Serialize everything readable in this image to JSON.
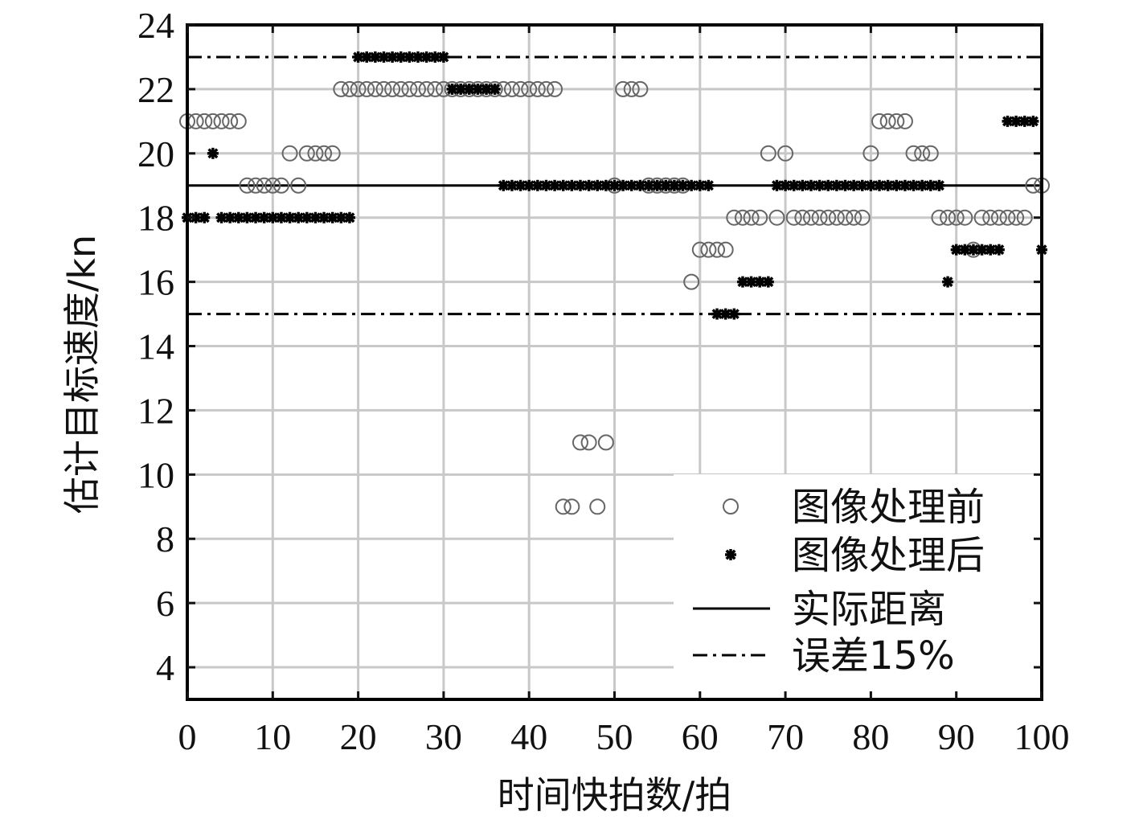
{
  "chart_data": {
    "type": "scatter",
    "title": "",
    "xlabel": "时间快拍数/拍",
    "ylabel": "估计目标速度/kn",
    "xlim": [
      0,
      100
    ],
    "ylim": [
      3,
      24
    ],
    "xticks": [
      "0",
      "10",
      "20",
      "30",
      "40",
      "50",
      "60",
      "70",
      "80",
      "90",
      "100"
    ],
    "yticks": [
      "4",
      "6",
      "8",
      "10",
      "12",
      "14",
      "16",
      "18",
      "20",
      "22",
      "24"
    ],
    "grid": true,
    "legend_position": "bottom-right",
    "series": [
      {
        "name": "图像处理前",
        "marker": "circle",
        "color": "#666666",
        "x": [
          0,
          1,
          2,
          3,
          4,
          5,
          6,
          7,
          8,
          9,
          10,
          11,
          12,
          13,
          14,
          15,
          16,
          17,
          18,
          19,
          20,
          21,
          22,
          23,
          24,
          25,
          26,
          27,
          28,
          29,
          30,
          31,
          32,
          33,
          34,
          35,
          36,
          37,
          38,
          39,
          40,
          41,
          42,
          43,
          44,
          45,
          46,
          47,
          48,
          49,
          50,
          51,
          52,
          53,
          54,
          55,
          56,
          57,
          58,
          59,
          60,
          61,
          62,
          63,
          64,
          65,
          66,
          67,
          68,
          69,
          70,
          71,
          72,
          73,
          74,
          75,
          76,
          77,
          78,
          79,
          80,
          81,
          82,
          83,
          84,
          85,
          86,
          87,
          88,
          89,
          90,
          91,
          92,
          93,
          94,
          95,
          96,
          97,
          98,
          99,
          100
        ],
        "y": [
          21,
          21,
          21,
          21,
          21,
          21,
          21,
          19,
          19,
          19,
          19,
          19,
          20,
          19,
          20,
          20,
          20,
          20,
          22,
          22,
          22,
          22,
          22,
          22,
          22,
          22,
          22,
          22,
          22,
          22,
          22,
          22,
          22,
          22,
          22,
          22,
          22,
          22,
          22,
          22,
          22,
          22,
          22,
          22,
          9,
          9,
          11,
          11,
          9,
          11,
          19,
          22,
          22,
          22,
          19,
          19,
          19,
          19,
          19,
          16,
          17,
          17,
          17,
          17,
          18,
          18,
          18,
          18,
          20,
          18,
          20,
          18,
          18,
          18,
          18,
          18,
          18,
          18,
          18,
          18,
          20,
          21,
          21,
          21,
          21,
          20,
          20,
          20,
          18,
          18,
          18,
          18,
          17,
          18,
          18,
          18,
          18,
          18,
          18,
          19,
          19
        ]
      },
      {
        "name": "图像处理后",
        "marker": "asterisk",
        "color": "#000000",
        "x": [
          0,
          1,
          2,
          3,
          4,
          5,
          6,
          7,
          8,
          9,
          10,
          11,
          12,
          13,
          14,
          15,
          16,
          17,
          18,
          19,
          20,
          21,
          22,
          23,
          24,
          25,
          26,
          27,
          28,
          29,
          30,
          31,
          32,
          33,
          34,
          35,
          36,
          37,
          38,
          39,
          40,
          41,
          42,
          43,
          44,
          45,
          46,
          47,
          48,
          49,
          50,
          51,
          52,
          53,
          54,
          55,
          56,
          57,
          58,
          59,
          60,
          61,
          62,
          63,
          64,
          65,
          66,
          67,
          68,
          69,
          70,
          71,
          72,
          73,
          74,
          75,
          76,
          77,
          78,
          79,
          80,
          81,
          82,
          83,
          84,
          85,
          86,
          87,
          88,
          89,
          90,
          91,
          92,
          93,
          94,
          95,
          96,
          97,
          98,
          99,
          100
        ],
        "y": [
          18,
          18,
          18,
          20,
          18,
          18,
          18,
          18,
          18,
          18,
          18,
          18,
          18,
          18,
          18,
          18,
          18,
          18,
          18,
          18,
          23,
          23,
          23,
          23,
          23,
          23,
          23,
          23,
          23,
          23,
          23,
          22,
          22,
          22,
          22,
          22,
          22,
          19,
          19,
          19,
          19,
          19,
          19,
          19,
          19,
          19,
          19,
          19,
          19,
          19,
          19,
          19,
          19,
          19,
          19,
          19,
          19,
          19,
          19,
          19,
          19,
          19,
          15,
          15,
          15,
          16,
          16,
          16,
          16,
          19,
          19,
          19,
          19,
          19,
          19,
          19,
          19,
          19,
          19,
          19,
          19,
          19,
          19,
          19,
          19,
          19,
          19,
          19,
          19,
          16,
          17,
          17,
          17,
          17,
          17,
          17,
          21,
          21,
          21,
          21,
          17
        ]
      },
      {
        "name": "实际距离",
        "style": "solid-line",
        "color": "#000000",
        "y": 19
      },
      {
        "name": "误差15%",
        "style": "dash-dot-line",
        "color": "#000000",
        "y": [
          15,
          23
        ]
      }
    ]
  }
}
